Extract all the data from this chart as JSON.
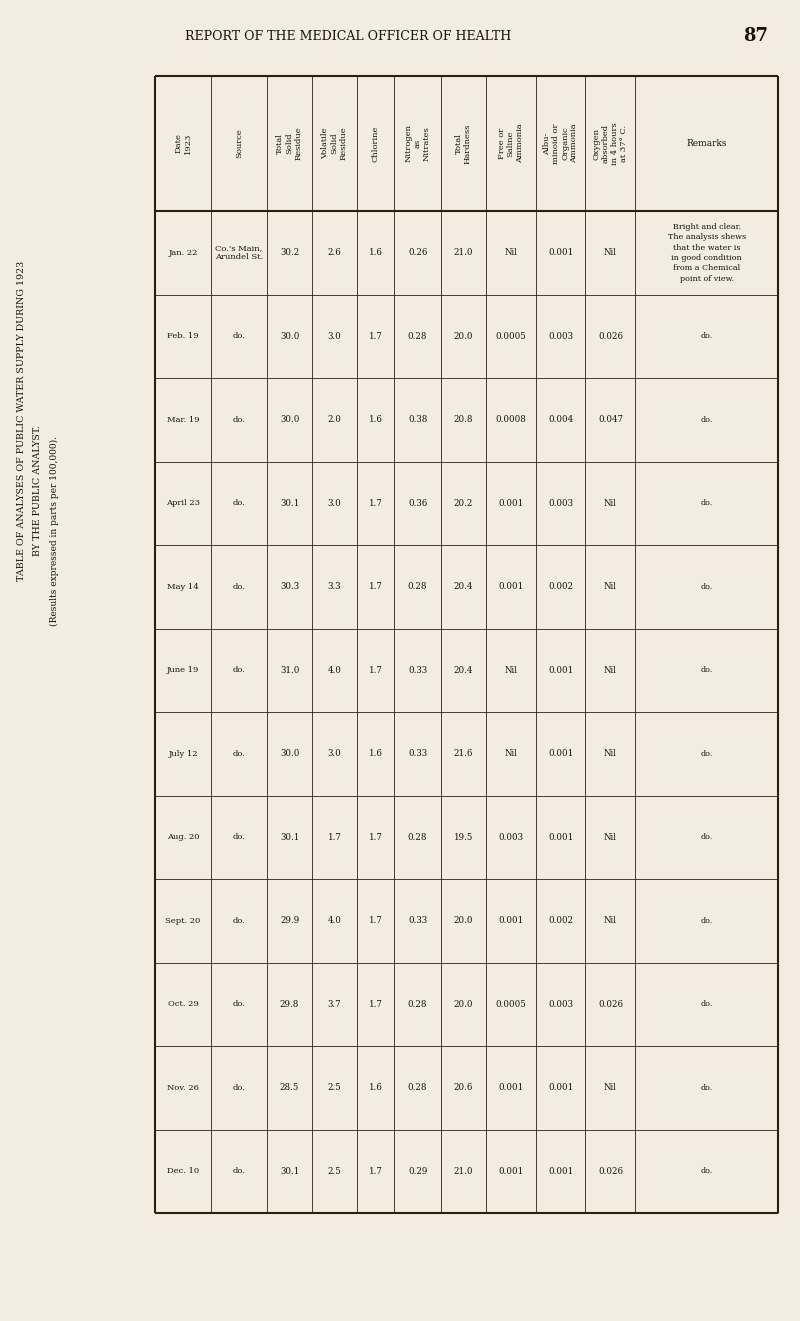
{
  "page_header": "REPORT OF THE MEDICAL OFFICER OF HEALTH",
  "page_number": "87",
  "left_title_lines": [
    "TABLE OF ANALYSES OF PUBLIC WATER SUPPLY DURING 1923",
    "BY THE PUBLIC ANALYST.",
    "(Results expressed in parts per 100,000)."
  ],
  "col_headers": [
    "Date\n1923",
    "Source",
    "Total\nSolid\nResidue",
    "Volatile\nSolid\nResidue",
    "Chlorine",
    "Nitrogen\nas\nNitrates",
    "Total\nHardness",
    "Free or\nSaline\nAmmonia",
    "Albu-\nminoid or\nOrganic\nAmmonia",
    "Oxygen\nabsorbed\nin 4 hours\nat 37° C.",
    "Remarks"
  ],
  "col_header_rotated": [
    true,
    true,
    true,
    true,
    true,
    true,
    true,
    true,
    true,
    true,
    false
  ],
  "rows": [
    {
      "date": "Jan. 22",
      "source": "Co.'s Main,\nArundel St.",
      "total_solid": "30.2",
      "volatile_solid": "2.6",
      "chlorine": "1.6",
      "nitrogen": "0.26",
      "total_hardness": "21.0",
      "free_ammonia": "Nil",
      "albu_ammonia": "0.001",
      "oxygen": "Nil",
      "remarks": "Bright and clear.\nThe analysis shews\nthat the water is\nin good condition\nfrom a Chemical\npoint of view."
    },
    {
      "date": "Feb. 19",
      "source": "do.",
      "total_solid": "30.0",
      "volatile_solid": "3.0",
      "chlorine": "1.7",
      "nitrogen": "0.28",
      "total_hardness": "20.0",
      "free_ammonia": "0.0005",
      "albu_ammonia": "0.003",
      "oxygen": "0.026",
      "remarks": "do."
    },
    {
      "date": "Mar. 19",
      "source": "do.",
      "total_solid": "30.0",
      "volatile_solid": "2.0",
      "chlorine": "1.6",
      "nitrogen": "0.38",
      "total_hardness": "20.8",
      "free_ammonia": "0.0008",
      "albu_ammonia": "0.004",
      "oxygen": "0.047",
      "remarks": "do."
    },
    {
      "date": "April 23",
      "source": "do.",
      "total_solid": "30.1",
      "volatile_solid": "3.0",
      "chlorine": "1.7",
      "nitrogen": "0.36",
      "total_hardness": "20.2",
      "free_ammonia": "0.001",
      "albu_ammonia": "0.003",
      "oxygen": "Nil",
      "remarks": "do."
    },
    {
      "date": "May 14",
      "source": "do.",
      "total_solid": "30.3",
      "volatile_solid": "3.3",
      "chlorine": "1.7",
      "nitrogen": "0.28",
      "total_hardness": "20.4",
      "free_ammonia": "0.001",
      "albu_ammonia": "0.002",
      "oxygen": "Nil",
      "remarks": "do."
    },
    {
      "date": "June 19",
      "source": "do.",
      "total_solid": "31.0",
      "volatile_solid": "4.0",
      "chlorine": "1.7",
      "nitrogen": "0.33",
      "total_hardness": "20.4",
      "free_ammonia": "Nil",
      "albu_ammonia": "0.001",
      "oxygen": "Nil",
      "remarks": "do."
    },
    {
      "date": "July 12",
      "source": "do.",
      "total_solid": "30.0",
      "volatile_solid": "3.0",
      "chlorine": "1.6",
      "nitrogen": "0.33",
      "total_hardness": "21.6",
      "free_ammonia": "Nil",
      "albu_ammonia": "0.001",
      "oxygen": "Nil",
      "remarks": "do."
    },
    {
      "date": "Aug. 20",
      "source": "do.",
      "total_solid": "30.1",
      "volatile_solid": "1.7",
      "chlorine": "1.7",
      "nitrogen": "0.28",
      "total_hardness": "19.5",
      "free_ammonia": "0.003",
      "albu_ammonia": "0.001",
      "oxygen": "Nil",
      "remarks": "do."
    },
    {
      "date": "Sept. 20",
      "source": "do.",
      "total_solid": "29.9",
      "volatile_solid": "4.0",
      "chlorine": "1.7",
      "nitrogen": "0.33",
      "total_hardness": "20.0",
      "free_ammonia": "0.001",
      "albu_ammonia": "0.002",
      "oxygen": "Nil",
      "remarks": "do."
    },
    {
      "date": "Oct. 29",
      "source": "do.",
      "total_solid": "29.8",
      "volatile_solid": "3.7",
      "chlorine": "1.7",
      "nitrogen": "0.28",
      "total_hardness": "20.0",
      "free_ammonia": "0.0005",
      "albu_ammonia": "0.003",
      "oxygen": "0.026",
      "remarks": "do."
    },
    {
      "date": "Nov. 26",
      "source": "do.",
      "total_solid": "28.5",
      "volatile_solid": "2.5",
      "chlorine": "1.6",
      "nitrogen": "0.28",
      "total_hardness": "20.6",
      "free_ammonia": "0.001",
      "albu_ammonia": "0.001",
      "oxygen": "Nil",
      "remarks": "do."
    },
    {
      "date": "Dec. 10",
      "source": "do.",
      "total_solid": "30.1",
      "volatile_solid": "2.5",
      "chlorine": "1.7",
      "nitrogen": "0.29",
      "total_hardness": "21.0",
      "free_ammonia": "0.001",
      "albu_ammonia": "0.001",
      "oxygen": "0.026",
      "remarks": "do."
    }
  ],
  "bg_color": "#f2ede0",
  "text_color": "#1a1208",
  "line_color": "#2a2010"
}
